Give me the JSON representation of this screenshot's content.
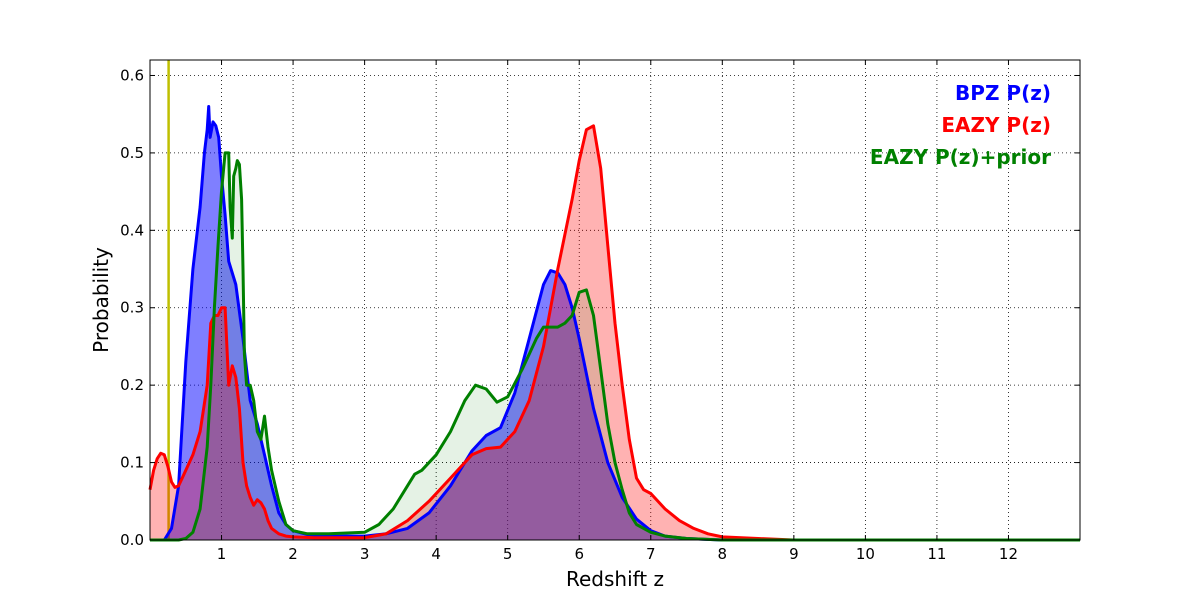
{
  "chart_data": {
    "type": "area",
    "xlabel": "Redshift z",
    "ylabel": "Probability",
    "xlim": [
      0,
      13
    ],
    "ylim": [
      0,
      0.62
    ],
    "xticks": [
      1,
      2,
      3,
      4,
      5,
      6,
      7,
      8,
      9,
      10,
      11,
      12
    ],
    "xtick_labels": [
      "1",
      "2",
      "3",
      "4",
      "5",
      "6",
      "7",
      "8",
      "9",
      "10",
      "11",
      "12"
    ],
    "yticks": [
      0.0,
      0.1,
      0.2,
      0.3,
      0.4,
      0.5,
      0.6
    ],
    "ytick_labels": [
      "0.0",
      "0.1",
      "0.2",
      "0.3",
      "0.4",
      "0.5",
      "0.6"
    ],
    "grid": true,
    "legend_position": "top-right",
    "reference_line": {
      "x": 0.26,
      "color": "#bfbf00"
    },
    "series": [
      {
        "name": "BPZ P(z)",
        "color": "#0000ff",
        "fill": "#0000ff",
        "fill_opacity": 0.5,
        "x": [
          0,
          0.2,
          0.3,
          0.4,
          0.5,
          0.6,
          0.7,
          0.76,
          0.8,
          0.82,
          0.84,
          0.88,
          0.92,
          0.96,
          1.0,
          1.05,
          1.1,
          1.2,
          1.3,
          1.4,
          1.5,
          1.6,
          1.7,
          1.8,
          1.9,
          2.0,
          2.2,
          2.5,
          3.0,
          3.3,
          3.6,
          3.9,
          4.2,
          4.5,
          4.7,
          4.9,
          5.1,
          5.3,
          5.5,
          5.6,
          5.7,
          5.8,
          5.9,
          6.0,
          6.2,
          6.4,
          6.6,
          6.8,
          7.0,
          7.2,
          7.5,
          8.0,
          13.0
        ],
        "y": [
          0.0,
          0.0,
          0.015,
          0.07,
          0.23,
          0.35,
          0.43,
          0.5,
          0.53,
          0.56,
          0.52,
          0.54,
          0.535,
          0.52,
          0.47,
          0.42,
          0.36,
          0.33,
          0.26,
          0.18,
          0.15,
          0.11,
          0.07,
          0.035,
          0.02,
          0.012,
          0.007,
          0.005,
          0.005,
          0.008,
          0.015,
          0.035,
          0.07,
          0.115,
          0.135,
          0.145,
          0.19,
          0.26,
          0.33,
          0.348,
          0.345,
          0.33,
          0.3,
          0.26,
          0.17,
          0.1,
          0.055,
          0.027,
          0.012,
          0.005,
          0.002,
          0.0,
          0.0
        ]
      },
      {
        "name": "EAZY P(z)",
        "color": "#ff0000",
        "fill": "#ff0000",
        "fill_opacity": 0.3,
        "x": [
          0,
          0.05,
          0.1,
          0.15,
          0.2,
          0.25,
          0.3,
          0.35,
          0.4,
          0.45,
          0.5,
          0.6,
          0.7,
          0.8,
          0.85,
          0.9,
          0.95,
          1.0,
          1.05,
          1.1,
          1.15,
          1.2,
          1.25,
          1.3,
          1.35,
          1.4,
          1.45,
          1.5,
          1.55,
          1.6,
          1.65,
          1.7,
          1.8,
          1.9,
          2.0,
          2.3,
          3.0,
          3.3,
          3.6,
          3.9,
          4.2,
          4.5,
          4.7,
          4.9,
          5.1,
          5.3,
          5.5,
          5.7,
          5.9,
          6.0,
          6.1,
          6.2,
          6.3,
          6.4,
          6.5,
          6.6,
          6.7,
          6.8,
          6.9,
          7.0,
          7.2,
          7.4,
          7.6,
          7.8,
          8.0,
          8.5,
          9.0,
          13.0
        ],
        "y": [
          0.065,
          0.09,
          0.105,
          0.112,
          0.11,
          0.095,
          0.075,
          0.068,
          0.07,
          0.08,
          0.09,
          0.11,
          0.14,
          0.2,
          0.28,
          0.29,
          0.29,
          0.3,
          0.3,
          0.2,
          0.225,
          0.21,
          0.17,
          0.1,
          0.07,
          0.055,
          0.045,
          0.052,
          0.048,
          0.04,
          0.025,
          0.015,
          0.008,
          0.005,
          0.004,
          0.003,
          0.003,
          0.008,
          0.025,
          0.05,
          0.08,
          0.11,
          0.118,
          0.12,
          0.14,
          0.18,
          0.25,
          0.35,
          0.44,
          0.49,
          0.53,
          0.535,
          0.48,
          0.38,
          0.28,
          0.2,
          0.13,
          0.08,
          0.065,
          0.06,
          0.04,
          0.025,
          0.015,
          0.008,
          0.004,
          0.002,
          0.0,
          0.0
        ]
      },
      {
        "name": "EAZY P(z)+prior",
        "color": "#008000",
        "fill": "#008000",
        "fill_opacity": 0.1,
        "x": [
          0,
          0.4,
          0.5,
          0.6,
          0.7,
          0.8,
          0.85,
          0.9,
          0.95,
          1.0,
          1.05,
          1.1,
          1.12,
          1.15,
          1.17,
          1.2,
          1.22,
          1.25,
          1.28,
          1.3,
          1.32,
          1.35,
          1.4,
          1.45,
          1.5,
          1.55,
          1.6,
          1.65,
          1.7,
          1.8,
          1.9,
          2.0,
          2.2,
          2.5,
          3.0,
          3.2,
          3.4,
          3.6,
          3.7,
          3.8,
          4.0,
          4.2,
          4.4,
          4.55,
          4.7,
          4.85,
          5.0,
          5.2,
          5.4,
          5.5,
          5.6,
          5.7,
          5.8,
          5.9,
          6.0,
          6.1,
          6.2,
          6.3,
          6.4,
          6.5,
          6.6,
          6.7,
          6.8,
          7.0,
          7.2,
          7.5,
          8.0,
          13.0
        ],
        "y": [
          0.0,
          0.0,
          0.002,
          0.01,
          0.04,
          0.12,
          0.2,
          0.3,
          0.38,
          0.45,
          0.5,
          0.5,
          0.43,
          0.39,
          0.47,
          0.48,
          0.49,
          0.485,
          0.44,
          0.35,
          0.24,
          0.2,
          0.2,
          0.18,
          0.14,
          0.13,
          0.16,
          0.12,
          0.09,
          0.05,
          0.02,
          0.012,
          0.008,
          0.008,
          0.01,
          0.02,
          0.04,
          0.07,
          0.085,
          0.09,
          0.11,
          0.14,
          0.18,
          0.2,
          0.195,
          0.178,
          0.185,
          0.22,
          0.26,
          0.275,
          0.275,
          0.275,
          0.28,
          0.29,
          0.32,
          0.323,
          0.29,
          0.22,
          0.15,
          0.1,
          0.065,
          0.035,
          0.02,
          0.01,
          0.005,
          0.002,
          0.0,
          0.0
        ]
      }
    ]
  }
}
